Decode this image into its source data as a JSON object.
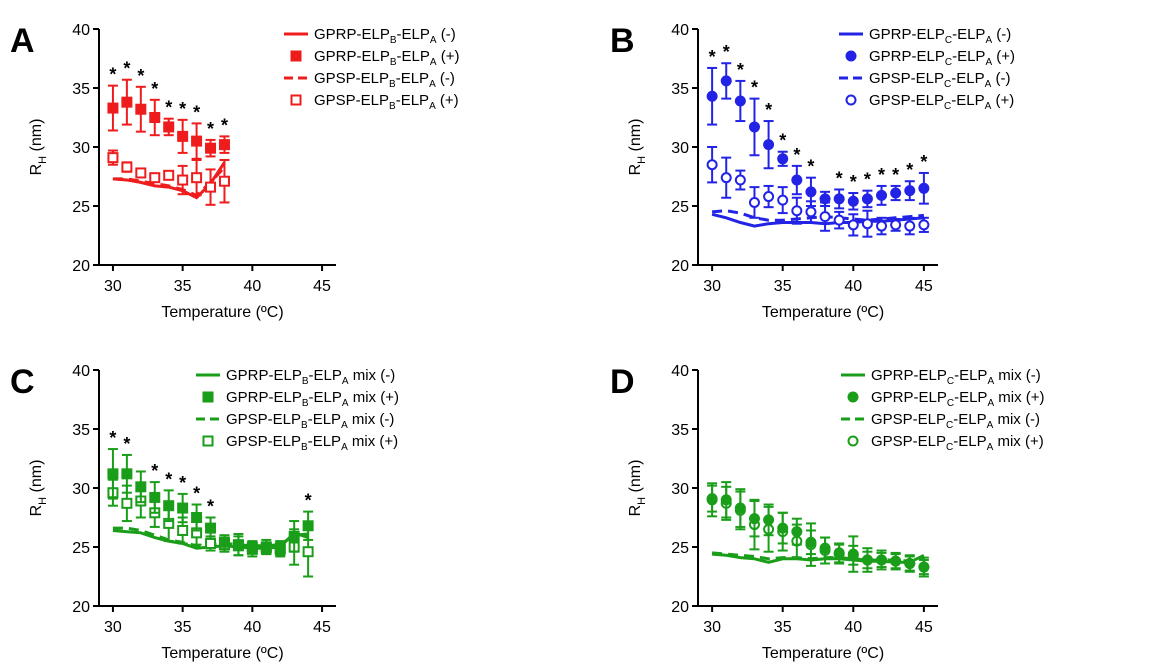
{
  "colors": {
    "red": "#ee1c1c",
    "blue": "#2323e6",
    "green": "#1a9e1a",
    "axis": "#000000"
  },
  "chart_data": [
    {
      "panel": "A",
      "type": "line+scatter",
      "color": "#ee1c1c",
      "xlabel": "Temperature",
      "xunit": "(ºC)",
      "ylabel": "R",
      "ylabel_sub": "H",
      "ylabel_unit": "(nm)",
      "xlim": [
        29,
        46
      ],
      "ylim": [
        20,
        40
      ],
      "xticks": [
        30,
        35,
        40,
        45
      ],
      "yticks": [
        20,
        25,
        30,
        35,
        40
      ],
      "legend_position": "top-right",
      "legend": [
        {
          "style": "solid",
          "parts": [
            "GPRP-ELP",
            "B",
            "-ELP",
            "A",
            " (-)"
          ]
        },
        {
          "style": "filled-square",
          "parts": [
            "GPRP-ELP",
            "B",
            "-ELP",
            "A",
            " (+)"
          ]
        },
        {
          "style": "dashed",
          "parts": [
            "GPSP-ELP",
            "B",
            "-ELP",
            "A",
            " (-)"
          ]
        },
        {
          "style": "open-square",
          "parts": [
            "GPSP-ELP",
            "B",
            "-ELP",
            "A",
            " (+)"
          ]
        }
      ],
      "line_solid": {
        "x": [
          30,
          31,
          32,
          33,
          34,
          35,
          36,
          37,
          38
        ],
        "y": [
          27.3,
          27.2,
          27.0,
          26.7,
          26.6,
          26.3,
          25.7,
          26.9,
          28.7
        ]
      },
      "line_dashed": {
        "x": [
          30,
          31,
          32,
          33,
          34,
          35,
          36,
          37,
          38
        ],
        "y": [
          27.3,
          27.3,
          27.1,
          26.9,
          26.7,
          26.4,
          25.9,
          27.0,
          28.3
        ]
      },
      "filled": {
        "x": [
          30,
          31,
          32,
          33,
          34,
          35,
          36,
          37,
          38
        ],
        "y": [
          33.3,
          33.8,
          33.2,
          32.5,
          31.7,
          30.9,
          30.5,
          29.9,
          30.2
        ],
        "err": [
          1.9,
          1.9,
          1.9,
          1.5,
          0.7,
          1.4,
          1.5,
          0.7,
          0.7
        ]
      },
      "open": {
        "x": [
          30,
          31,
          32,
          33,
          34,
          35,
          36,
          37,
          38
        ],
        "y": [
          29.1,
          28.3,
          27.8,
          27.4,
          27.6,
          27.2,
          27.4,
          26.6,
          27.1
        ],
        "err": [
          0.6,
          0.4,
          0.3,
          0.2,
          0.3,
          1.2,
          1.5,
          1.5,
          1.8
        ]
      },
      "stars_at": [
        30,
        31,
        32,
        33,
        34,
        35,
        36,
        37,
        38
      ],
      "star": "*"
    },
    {
      "panel": "B",
      "type": "line+scatter",
      "color": "#2323e6",
      "xlabel": "Temperature",
      "xunit": "(ºC)",
      "ylabel": "R",
      "ylabel_sub": "H",
      "ylabel_unit": "(nm)",
      "xlim": [
        29,
        46
      ],
      "ylim": [
        20,
        40
      ],
      "xticks": [
        30,
        35,
        40,
        45
      ],
      "yticks": [
        20,
        25,
        30,
        35,
        40
      ],
      "legend_position": "top-right",
      "legend": [
        {
          "style": "solid",
          "parts": [
            "GPRP-ELP",
            "C",
            "-ELP",
            "A",
            " (-)"
          ]
        },
        {
          "style": "filled-circle",
          "parts": [
            "GPRP-ELP",
            "C",
            "-ELP",
            "A",
            " (+)"
          ]
        },
        {
          "style": "dashed",
          "parts": [
            "GPSP-ELP",
            "C",
            "-ELP",
            "A",
            " (-)"
          ]
        },
        {
          "style": "open-circle",
          "parts": [
            "GPSP-ELP",
            "C",
            "-ELP",
            "A",
            " (+)"
          ]
        }
      ],
      "line_solid": {
        "x": [
          30,
          31,
          32,
          33,
          34,
          35,
          36,
          37,
          38,
          39,
          40,
          41,
          42,
          43,
          44,
          45
        ],
        "y": [
          24.3,
          24.0,
          23.6,
          23.3,
          23.5,
          23.6,
          23.6,
          23.6,
          23.5,
          23.6,
          23.6,
          23.7,
          23.7,
          23.8,
          23.9,
          24.0
        ]
      },
      "line_dashed": {
        "x": [
          30,
          31,
          32,
          33,
          34,
          35,
          36,
          37,
          38,
          39,
          40,
          41,
          42,
          43,
          44,
          45
        ],
        "y": [
          24.5,
          24.6,
          24.4,
          24.0,
          23.8,
          23.8,
          23.9,
          24.0,
          24.1,
          24.0,
          23.9,
          23.8,
          23.9,
          24.0,
          24.1,
          24.2
        ]
      },
      "filled": {
        "x": [
          30,
          31,
          32,
          33,
          34,
          35,
          36,
          37,
          38,
          39,
          40,
          41,
          42,
          43,
          44,
          45
        ],
        "y": [
          34.3,
          35.6,
          33.9,
          31.7,
          30.2,
          29.0,
          27.2,
          26.2,
          25.6,
          25.6,
          25.4,
          25.6,
          25.9,
          26.1,
          26.3,
          26.5
        ],
        "err": [
          2.4,
          1.5,
          1.7,
          2.4,
          2.0,
          0.6,
          1.2,
          1.2,
          0.6,
          0.8,
          0.7,
          0.7,
          0.8,
          0.6,
          0.8,
          1.3
        ]
      },
      "open": {
        "x": [
          30,
          31,
          32,
          33,
          34,
          35,
          36,
          37,
          38,
          39,
          40,
          41,
          42,
          43,
          44,
          45
        ],
        "y": [
          28.5,
          27.4,
          27.2,
          25.3,
          25.8,
          25.5,
          24.6,
          24.5,
          24.1,
          23.8,
          23.4,
          23.5,
          23.3,
          23.4,
          23.3,
          23.4
        ],
        "err": [
          1.5,
          1.7,
          0.8,
          1.3,
          0.9,
          1.1,
          1.1,
          0.9,
          1.2,
          0.7,
          0.9,
          1.1,
          0.7,
          0.5,
          0.7,
          0.6
        ]
      },
      "stars_at": [
        30,
        31,
        32,
        33,
        34,
        35,
        36,
        37,
        39,
        40,
        41,
        42,
        43,
        44,
        45
      ],
      "star": "*"
    },
    {
      "panel": "C",
      "type": "line+scatter",
      "color": "#1a9e1a",
      "xlabel": "Temperature",
      "xunit": "(ºC)",
      "ylabel": "R",
      "ylabel_sub": "H",
      "ylabel_unit": "(nm)",
      "xlim": [
        29,
        46
      ],
      "ylim": [
        20,
        40
      ],
      "xticks": [
        30,
        35,
        40,
        45
      ],
      "yticks": [
        20,
        25,
        30,
        35,
        40
      ],
      "legend_position": "top-right",
      "legend": [
        {
          "style": "solid",
          "parts": [
            "GPRP-ELP",
            "B",
            "-ELP",
            "A",
            " mix (-)"
          ]
        },
        {
          "style": "filled-square",
          "parts": [
            "GPRP-ELP",
            "B",
            "-ELP",
            "A",
            " mix (+)"
          ]
        },
        {
          "style": "dashed",
          "parts": [
            "GPSP-ELP",
            "B",
            "-ELP",
            "A",
            " mix (-)"
          ]
        },
        {
          "style": "open-square",
          "parts": [
            "GPSP-ELP",
            "B",
            "-ELP",
            "A",
            " mix (+)"
          ]
        }
      ],
      "line_solid": {
        "x": [
          30,
          31,
          32,
          33,
          34,
          35,
          36,
          37,
          38,
          39,
          40,
          41,
          42,
          43,
          44
        ],
        "y": [
          26.4,
          26.3,
          26.2,
          25.8,
          25.5,
          25.3,
          24.9,
          25.0,
          25.1,
          25.0,
          24.9,
          24.9,
          25.0,
          26.2,
          25.8
        ]
      },
      "line_dashed": {
        "x": [
          30,
          31,
          32,
          33,
          34,
          35,
          36,
          37,
          38,
          39,
          40,
          41,
          42,
          43,
          44
        ],
        "y": [
          26.6,
          26.6,
          26.4,
          26.0,
          25.6,
          25.4,
          25.1,
          25.2,
          25.3,
          25.2,
          25.1,
          25.1,
          25.2,
          26.0,
          26.1
        ]
      },
      "filled": {
        "x": [
          30,
          31,
          32,
          33,
          34,
          35,
          36,
          37,
          38,
          39,
          40,
          41,
          42,
          43,
          44
        ],
        "y": [
          31.2,
          31.2,
          30.1,
          29.2,
          28.5,
          28.3,
          27.5,
          26.6,
          25.4,
          25.2,
          25.0,
          25.0,
          24.9,
          25.9,
          26.8
        ],
        "err": [
          2.1,
          1.6,
          1.3,
          1.3,
          1.3,
          1.2,
          1.1,
          0.9,
          0.6,
          0.9,
          0.5,
          0.6,
          0.6,
          1.3,
          1.2
        ]
      },
      "open": {
        "x": [
          30,
          31,
          32,
          33,
          34,
          35,
          36,
          37,
          38,
          39,
          40,
          41,
          42,
          43,
          44
        ],
        "y": [
          29.6,
          28.7,
          28.9,
          27.9,
          27.0,
          26.4,
          26.2,
          25.3,
          25.2,
          25.1,
          24.8,
          24.9,
          24.8,
          25.0,
          24.6
        ],
        "err": [
          1.1,
          1.5,
          1.4,
          1.2,
          1.5,
          1.1,
          1.0,
          0.6,
          0.6,
          0.8,
          0.6,
          0.5,
          0.6,
          1.5,
          2.1
        ]
      },
      "stars_at": [
        30,
        31,
        33,
        34,
        35,
        36,
        37,
        44
      ],
      "star": "*"
    },
    {
      "panel": "D",
      "type": "line+scatter",
      "color": "#1a9e1a",
      "xlabel": "Temperature",
      "xunit": "(ºC)",
      "ylabel": "R",
      "ylabel_sub": "H",
      "ylabel_unit": "(nm)",
      "xlim": [
        29,
        46
      ],
      "ylim": [
        20,
        40
      ],
      "xticks": [
        30,
        35,
        40,
        45
      ],
      "yticks": [
        20,
        25,
        30,
        35,
        40
      ],
      "legend_position": "top-right",
      "legend": [
        {
          "style": "solid",
          "parts": [
            "GPRP-ELP",
            "C",
            "-ELP",
            "A",
            " mix (-)"
          ]
        },
        {
          "style": "filled-circle",
          "parts": [
            "GPRP-ELP",
            "C",
            "-ELP",
            "A",
            " mix (+)"
          ]
        },
        {
          "style": "dashed",
          "parts": [
            "GPSP-ELP",
            "C",
            "-ELP",
            "A",
            " mix (-)"
          ]
        },
        {
          "style": "open-circle",
          "parts": [
            "GPSP-ELP",
            "C",
            "-ELP",
            "A",
            " mix (+)"
          ]
        }
      ],
      "line_solid": {
        "x": [
          30,
          31,
          32,
          33,
          34,
          35,
          36,
          37,
          38,
          39,
          40,
          41,
          42,
          43,
          44,
          45
        ],
        "y": [
          24.4,
          24.3,
          24.1,
          24.0,
          23.7,
          24.0,
          24.0,
          23.9,
          24.0,
          24.0,
          23.9,
          23.8,
          23.8,
          23.7,
          23.7,
          24.3
        ]
      },
      "line_dashed": {
        "x": [
          30,
          31,
          32,
          33,
          34,
          35,
          36,
          37,
          38,
          39,
          40,
          41,
          42,
          43,
          44,
          45
        ],
        "y": [
          24.5,
          24.4,
          24.3,
          24.2,
          24.0,
          24.1,
          24.1,
          24.0,
          24.1,
          24.1,
          24.0,
          23.9,
          23.9,
          23.9,
          23.8,
          24.1
        ]
      },
      "filled": {
        "x": [
          30,
          31,
          32,
          33,
          34,
          35,
          36,
          37,
          38,
          39,
          40,
          41,
          42,
          43,
          44,
          45
        ],
        "y": [
          29.0,
          29.0,
          28.3,
          27.4,
          27.3,
          26.6,
          26.3,
          25.4,
          24.9,
          24.5,
          24.3,
          23.9,
          23.9,
          23.8,
          23.6,
          23.3
        ],
        "err": [
          1.4,
          1.5,
          1.6,
          1.5,
          1.3,
          1.3,
          1.1,
          1.0,
          0.9,
          0.8,
          0.8,
          0.7,
          0.6,
          0.7,
          0.7,
          0.6
        ]
      },
      "open": {
        "x": [
          30,
          31,
          32,
          33,
          34,
          35,
          36,
          37,
          38,
          39,
          40,
          41,
          42,
          43,
          44,
          45
        ],
        "y": [
          29.1,
          28.7,
          28.1,
          26.9,
          26.5,
          26.3,
          25.5,
          25.2,
          24.7,
          24.4,
          24.4,
          23.9,
          23.9,
          23.8,
          23.6,
          23.3
        ],
        "err": [
          1.1,
          1.4,
          1.6,
          2.1,
          1.9,
          1.6,
          1.4,
          1.8,
          1.1,
          0.8,
          1.5,
          1.0,
          0.8,
          0.6,
          0.6,
          0.8
        ]
      },
      "stars_at": [],
      "star": "*"
    }
  ]
}
